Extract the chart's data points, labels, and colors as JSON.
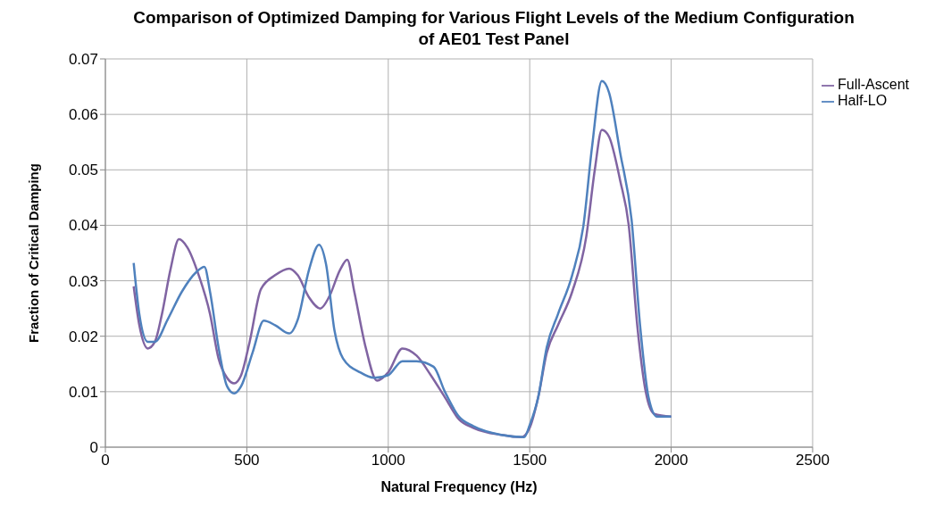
{
  "chart_data": {
    "type": "line",
    "title": "Comparison of Optimized Damping for Various Flight Levels of the Medium Configuration of AE01 Test Panel",
    "xlabel": "Natural Frequency (Hz)",
    "ylabel": "Fraction of Critical Damping",
    "xlim": [
      0,
      2500
    ],
    "xticks": [
      0,
      500,
      1000,
      1500,
      2000,
      2500
    ],
    "ylim": [
      0,
      0.07
    ],
    "yticks": [
      0,
      0.01,
      0.02,
      0.03,
      0.04,
      0.05,
      0.06,
      0.07
    ],
    "grid": true,
    "legend": "right",
    "marker": "none",
    "line_style": "solid",
    "series": [
      {
        "name": "Full-Ascent",
        "color": "#8064a2",
        "x": [
          100,
          120,
          150,
          175,
          200,
          230,
          260,
          290,
          330,
          370,
          400,
          430,
          455,
          480,
          510,
          550,
          600,
          650,
          680,
          720,
          760,
          790,
          830,
          855,
          880,
          920,
          960,
          1000,
          1050,
          1100,
          1150,
          1200,
          1250,
          1300,
          1400,
          1470,
          1500,
          1530,
          1560,
          1600,
          1650,
          1700,
          1730,
          1755,
          1780,
          1820,
          1850,
          1880,
          1910,
          1940,
          2000
        ],
        "values": [
          0.029,
          0.022,
          0.0178,
          0.019,
          0.024,
          0.032,
          0.0375,
          0.036,
          0.031,
          0.024,
          0.016,
          0.0125,
          0.0115,
          0.013,
          0.019,
          0.0285,
          0.031,
          0.0322,
          0.031,
          0.027,
          0.025,
          0.027,
          0.032,
          0.0338,
          0.028,
          0.018,
          0.012,
          0.0135,
          0.0178,
          0.0165,
          0.013,
          0.009,
          0.005,
          0.0035,
          0.0022,
          0.0018,
          0.0035,
          0.009,
          0.017,
          0.022,
          0.028,
          0.038,
          0.05,
          0.0572,
          0.056,
          0.048,
          0.04,
          0.022,
          0.01,
          0.006,
          0.0055
        ]
      },
      {
        "name": "Half-LO",
        "color": "#4f81bd",
        "x": [
          100,
          120,
          150,
          175,
          220,
          270,
          320,
          350,
          370,
          400,
          430,
          455,
          480,
          520,
          560,
          600,
          650,
          680,
          720,
          755,
          780,
          810,
          840,
          900,
          950,
          1000,
          1050,
          1100,
          1160,
          1200,
          1250,
          1300,
          1400,
          1480,
          1500,
          1530,
          1560,
          1600,
          1650,
          1690,
          1720,
          1755,
          1780,
          1820,
          1860,
          1890,
          1920,
          1950,
          2000
        ],
        "values": [
          0.0332,
          0.024,
          0.019,
          0.019,
          0.023,
          0.028,
          0.0315,
          0.0325,
          0.028,
          0.018,
          0.011,
          0.0097,
          0.011,
          0.017,
          0.0228,
          0.022,
          0.0205,
          0.023,
          0.032,
          0.0365,
          0.033,
          0.021,
          0.016,
          0.0135,
          0.0125,
          0.013,
          0.0155,
          0.0155,
          0.0145,
          0.01,
          0.0055,
          0.0038,
          0.0022,
          0.0018,
          0.004,
          0.009,
          0.018,
          0.024,
          0.031,
          0.04,
          0.054,
          0.066,
          0.064,
          0.053,
          0.041,
          0.022,
          0.009,
          0.0055,
          0.0055
        ]
      }
    ]
  }
}
